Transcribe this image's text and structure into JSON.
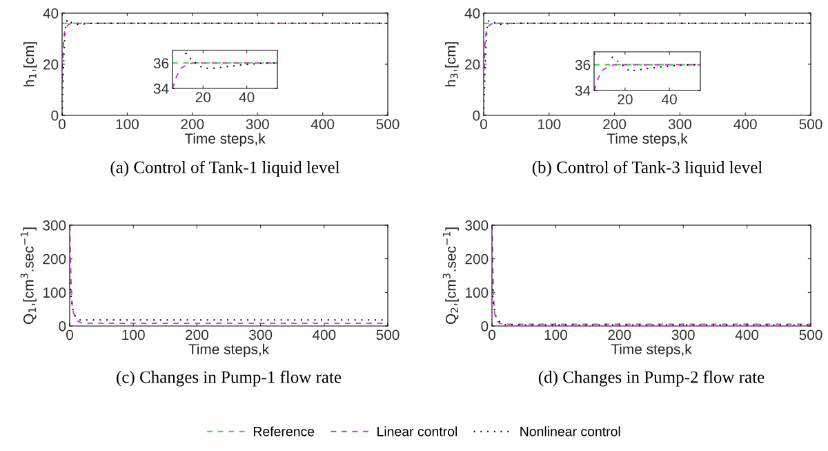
{
  "chart_data": [
    {
      "type": "line",
      "title": "(a) Control of Tank-1 liquid level",
      "xlabel": "Time steps,k",
      "ylabel": "h$_{1}$,[cm]",
      "xlim": [
        0,
        500
      ],
      "ylim": [
        0,
        40
      ],
      "xticks": [
        0,
        100,
        200,
        300,
        400,
        500
      ],
      "yticks": [
        0,
        20,
        40
      ],
      "legend": "bottom",
      "grid": false,
      "series": [
        {
          "name": "Reference",
          "color": "#33dd33",
          "line_style": "dashed",
          "x": [
            0,
            500
          ],
          "values": [
            36,
            36
          ]
        },
        {
          "name": "Linear control",
          "color": "#dd33dd",
          "line_style": "dashed",
          "x": [
            0,
            2,
            4,
            6,
            8,
            10,
            15,
            20,
            50,
            100,
            500
          ],
          "values": [
            14,
            28,
            33,
            34,
            35,
            35.6,
            36,
            36,
            36,
            36,
            36
          ]
        },
        {
          "name": "Nonlinear control",
          "color": "#000000",
          "line_style": "dotted",
          "x": [
            0,
            2,
            4,
            6,
            8,
            10,
            12,
            15,
            20,
            25,
            30,
            40,
            50,
            100,
            500
          ],
          "values": [
            0,
            18,
            30,
            36,
            37.2,
            37.6,
            36.8,
            36.2,
            35.6,
            35.6,
            35.7,
            35.9,
            36,
            36,
            36
          ]
        }
      ]
    },
    {
      "type": "line",
      "xlim": [
        6,
        54
      ],
      "ylim": [
        34,
        37
      ],
      "xticks": [
        20,
        40
      ],
      "yticks": [
        34,
        36
      ],
      "grid": false,
      "series": [
        {
          "color": "#33dd33",
          "line_style": "dashed",
          "x": [
            6,
            54
          ],
          "values": [
            36,
            36
          ]
        },
        {
          "color": "#dd33dd",
          "line_style": "dashed",
          "x": [
            6,
            8,
            10,
            12,
            15,
            20,
            50,
            54
          ],
          "values": [
            34,
            35,
            35.6,
            35.8,
            36,
            36,
            36,
            36
          ]
        },
        {
          "color": "#000000",
          "line_style": "dotted",
          "x": [
            12,
            15,
            20,
            25,
            30,
            40,
            50,
            54
          ],
          "values": [
            36.8,
            36.2,
            35.6,
            35.6,
            35.7,
            35.9,
            36,
            36
          ]
        }
      ]
    },
    {
      "type": "line",
      "title": "(b) Control of Tank-3 liquid level",
      "xlabel": "Time steps,k",
      "ylabel": "h$_{3}$,[cm]",
      "xlim": [
        0,
        500
      ],
      "ylim": [
        0,
        40
      ],
      "xticks": [
        0,
        100,
        200,
        300,
        400,
        500
      ],
      "yticks": [
        0,
        20,
        40
      ],
      "grid": false,
      "series": [
        {
          "color": "#33dd33",
          "line_style": "dashed",
          "x": [
            0,
            500
          ],
          "values": [
            36,
            36
          ]
        },
        {
          "color": "#dd33dd",
          "line_style": "dashed",
          "x": [
            0,
            2,
            4,
            6,
            8,
            10,
            15,
            20,
            50,
            100,
            500
          ],
          "values": [
            14,
            28,
            33,
            34,
            35,
            35.6,
            36,
            36,
            36,
            36,
            36
          ]
        },
        {
          "color": "#000000",
          "line_style": "dotted",
          "x": [
            0,
            2,
            4,
            6,
            8,
            10,
            14,
            18,
            22,
            30,
            40,
            50,
            100,
            500
          ],
          "values": [
            0,
            18,
            30,
            36,
            37,
            37.2,
            36.6,
            36.1,
            35.5,
            35.7,
            35.9,
            36,
            36,
            36
          ]
        }
      ]
    },
    {
      "type": "line",
      "xlim": [
        6,
        54
      ],
      "ylim": [
        34,
        37
      ],
      "xticks": [
        20,
        40
      ],
      "yticks": [
        34,
        36
      ],
      "grid": false,
      "series": [
        {
          "color": "#33dd33",
          "line_style": "dashed",
          "x": [
            6,
            54
          ],
          "values": [
            36,
            36
          ]
        },
        {
          "color": "#dd33dd",
          "line_style": "dashed",
          "x": [
            6,
            8,
            10,
            12,
            15,
            20,
            50,
            54
          ],
          "values": [
            34,
            35,
            35.6,
            35.8,
            36,
            36,
            36,
            36
          ]
        },
        {
          "color": "#000000",
          "line_style": "dotted",
          "x": [
            6,
            8,
            10,
            14,
            18,
            22,
            30,
            40,
            50,
            54
          ],
          "values": [
            36.8,
            37,
            null,
            36.6,
            36.1,
            35.5,
            35.7,
            35.9,
            36,
            36
          ]
        }
      ]
    },
    {
      "type": "line",
      "title": "(c) Changes in Pump-1 flow rate",
      "xlabel": "Time steps,k",
      "ylabel": "Q$_{1}$,[cm$^{3}$.sec$^{−1}$]",
      "xlim": [
        0,
        500
      ],
      "ylim": [
        0,
        300
      ],
      "xticks": [
        0,
        100,
        200,
        300,
        400,
        500
      ],
      "yticks": [
        0,
        100,
        200,
        300
      ],
      "grid": false,
      "series": [
        {
          "color": "#dd33dd",
          "line_style": "dashed",
          "x": [
            0,
            1,
            2,
            3,
            4,
            6,
            8,
            12,
            20,
            50,
            100,
            500
          ],
          "values": [
            300,
            220,
            140,
            90,
            60,
            40,
            30,
            15,
            8,
            8,
            8,
            8
          ]
        },
        {
          "color": "#000000",
          "line_style": "dotted",
          "x": [
            0,
            1,
            2,
            4,
            6,
            10,
            15,
            20,
            50,
            100,
            500
          ],
          "values": [
            150,
            120,
            90,
            60,
            40,
            25,
            18,
            18,
            18,
            18,
            18
          ]
        }
      ]
    },
    {
      "type": "line",
      "title": "(d) Changes in Pump-2 flow rate",
      "xlabel": "Time steps,k",
      "ylabel": "Q$_{2}$,[cm$^{3}$.sec$^{−1}$]",
      "xlim": [
        0,
        500
      ],
      "ylim": [
        0,
        300
      ],
      "xticks": [
        0,
        100,
        200,
        300,
        400,
        500
      ],
      "yticks": [
        0,
        100,
        200,
        300
      ],
      "grid": false,
      "series": [
        {
          "color": "#dd33dd",
          "line_style": "dashed",
          "x": [
            0,
            1,
            2,
            3,
            4,
            6,
            8,
            12,
            20,
            50,
            100,
            500
          ],
          "values": [
            300,
            200,
            120,
            70,
            40,
            25,
            15,
            8,
            5,
            5,
            5,
            5
          ]
        },
        {
          "color": "#000000",
          "line_style": "dotted",
          "x": [
            0,
            1,
            2,
            4,
            6,
            10,
            15,
            20,
            50,
            100,
            500
          ],
          "values": [
            130,
            100,
            70,
            45,
            30,
            15,
            8,
            4,
            3,
            3,
            3
          ]
        }
      ]
    }
  ]
}
